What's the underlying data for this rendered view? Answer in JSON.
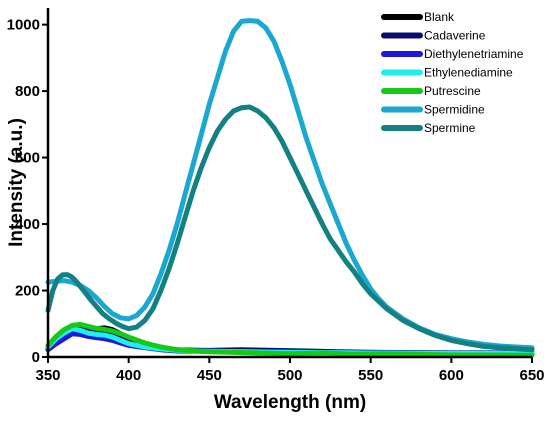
{
  "chart_data": {
    "type": "line",
    "title": "",
    "xlabel": "Wavelength (nm)",
    "ylabel": "Intensity (a.u.)",
    "xlim": [
      350,
      650
    ],
    "ylim": [
      0,
      1050
    ],
    "xticks": [
      350,
      400,
      450,
      500,
      550,
      600,
      650
    ],
    "yticks": [
      0,
      200,
      400,
      600,
      800,
      1000
    ],
    "legend_position": "top-right",
    "grid": false,
    "series": [
      {
        "name": "Blank",
        "color": "#000000",
        "points": [
          [
            350,
            28
          ],
          [
            355,
            50
          ],
          [
            360,
            70
          ],
          [
            365,
            85
          ],
          [
            370,
            92
          ],
          [
            375,
            90
          ],
          [
            380,
            85
          ],
          [
            385,
            88
          ],
          [
            390,
            82
          ],
          [
            395,
            70
          ],
          [
            400,
            52
          ],
          [
            410,
            35
          ],
          [
            420,
            28
          ],
          [
            430,
            22
          ],
          [
            450,
            18
          ],
          [
            500,
            15
          ],
          [
            550,
            13
          ],
          [
            600,
            12
          ],
          [
            650,
            12
          ]
        ]
      },
      {
        "name": "Cadaverine",
        "color": "#0b0b6e",
        "points": [
          [
            350,
            25
          ],
          [
            355,
            45
          ],
          [
            360,
            65
          ],
          [
            365,
            80
          ],
          [
            370,
            85
          ],
          [
            375,
            82
          ],
          [
            380,
            78
          ],
          [
            385,
            74
          ],
          [
            390,
            65
          ],
          [
            395,
            55
          ],
          [
            400,
            42
          ],
          [
            410,
            32
          ],
          [
            420,
            25
          ],
          [
            430,
            21
          ],
          [
            450,
            20
          ],
          [
            470,
            22
          ],
          [
            490,
            20
          ],
          [
            510,
            18
          ],
          [
            530,
            16
          ],
          [
            550,
            14
          ],
          [
            600,
            13
          ],
          [
            650,
            13
          ]
        ]
      },
      {
        "name": "Diethylenetriamine",
        "color": "#1a1ad8",
        "points": [
          [
            350,
            22
          ],
          [
            355,
            40
          ],
          [
            360,
            55
          ],
          [
            365,
            70
          ],
          [
            370,
            68
          ],
          [
            375,
            62
          ],
          [
            380,
            58
          ],
          [
            385,
            55
          ],
          [
            390,
            50
          ],
          [
            395,
            42
          ],
          [
            400,
            35
          ],
          [
            410,
            28
          ],
          [
            420,
            22
          ],
          [
            430,
            18
          ],
          [
            450,
            17
          ],
          [
            500,
            15
          ],
          [
            550,
            13
          ],
          [
            600,
            12
          ],
          [
            650,
            12
          ]
        ]
      },
      {
        "name": "Ethylenediamine",
        "color": "#22eef0",
        "points": [
          [
            350,
            30
          ],
          [
            355,
            55
          ],
          [
            360,
            72
          ],
          [
            365,
            85
          ],
          [
            370,
            80
          ],
          [
            375,
            72
          ],
          [
            380,
            68
          ],
          [
            385,
            66
          ],
          [
            390,
            60
          ],
          [
            395,
            50
          ],
          [
            400,
            40
          ],
          [
            410,
            30
          ],
          [
            420,
            24
          ],
          [
            430,
            20
          ],
          [
            450,
            17
          ],
          [
            500,
            14
          ],
          [
            550,
            12
          ],
          [
            600,
            11
          ],
          [
            650,
            11
          ]
        ]
      },
      {
        "name": "Putrescine",
        "color": "#16c916",
        "points": [
          [
            350,
            35
          ],
          [
            355,
            62
          ],
          [
            360,
            82
          ],
          [
            365,
            95
          ],
          [
            370,
            98
          ],
          [
            375,
            92
          ],
          [
            380,
            86
          ],
          [
            385,
            83
          ],
          [
            390,
            78
          ],
          [
            395,
            70
          ],
          [
            400,
            60
          ],
          [
            410,
            42
          ],
          [
            420,
            30
          ],
          [
            430,
            22
          ],
          [
            450,
            16
          ],
          [
            480,
            12
          ],
          [
            500,
            10
          ],
          [
            520,
            12
          ],
          [
            540,
            8
          ],
          [
            560,
            10
          ],
          [
            580,
            8
          ],
          [
            600,
            6
          ],
          [
            620,
            6
          ],
          [
            650,
            5
          ]
        ]
      },
      {
        "name": "Spermidine",
        "color": "#1aa7d2",
        "points": [
          [
            350,
            225
          ],
          [
            355,
            228
          ],
          [
            360,
            230
          ],
          [
            365,
            225
          ],
          [
            370,
            215
          ],
          [
            375,
            200
          ],
          [
            380,
            178
          ],
          [
            385,
            152
          ],
          [
            390,
            130
          ],
          [
            395,
            118
          ],
          [
            400,
            115
          ],
          [
            405,
            125
          ],
          [
            410,
            150
          ],
          [
            415,
            190
          ],
          [
            420,
            250
          ],
          [
            425,
            320
          ],
          [
            430,
            400
          ],
          [
            435,
            490
          ],
          [
            440,
            580
          ],
          [
            445,
            670
          ],
          [
            450,
            760
          ],
          [
            455,
            840
          ],
          [
            460,
            920
          ],
          [
            465,
            980
          ],
          [
            470,
            1010
          ],
          [
            475,
            1012
          ],
          [
            480,
            1010
          ],
          [
            485,
            990
          ],
          [
            490,
            950
          ],
          [
            495,
            890
          ],
          [
            500,
            820
          ],
          [
            505,
            740
          ],
          [
            510,
            660
          ],
          [
            515,
            590
          ],
          [
            520,
            520
          ],
          [
            525,
            460
          ],
          [
            530,
            400
          ],
          [
            535,
            340
          ],
          [
            540,
            290
          ],
          [
            545,
            245
          ],
          [
            550,
            205
          ],
          [
            555,
            175
          ],
          [
            560,
            150
          ],
          [
            570,
            115
          ],
          [
            580,
            88
          ],
          [
            590,
            68
          ],
          [
            600,
            55
          ],
          [
            610,
            45
          ],
          [
            620,
            38
          ],
          [
            630,
            33
          ],
          [
            640,
            30
          ],
          [
            650,
            28
          ]
        ]
      },
      {
        "name": "Spermine",
        "color": "#138181",
        "points": [
          [
            350,
            140
          ],
          [
            353,
            200
          ],
          [
            356,
            235
          ],
          [
            359,
            247
          ],
          [
            362,
            248
          ],
          [
            365,
            240
          ],
          [
            368,
            225
          ],
          [
            372,
            200
          ],
          [
            376,
            175
          ],
          [
            380,
            152
          ],
          [
            384,
            130
          ],
          [
            388,
            115
          ],
          [
            392,
            102
          ],
          [
            396,
            92
          ],
          [
            400,
            85
          ],
          [
            405,
            90
          ],
          [
            410,
            110
          ],
          [
            415,
            145
          ],
          [
            420,
            200
          ],
          [
            425,
            265
          ],
          [
            430,
            340
          ],
          [
            435,
            420
          ],
          [
            440,
            500
          ],
          [
            445,
            570
          ],
          [
            450,
            630
          ],
          [
            455,
            680
          ],
          [
            460,
            715
          ],
          [
            465,
            740
          ],
          [
            470,
            750
          ],
          [
            475,
            752
          ],
          [
            480,
            740
          ],
          [
            485,
            720
          ],
          [
            490,
            690
          ],
          [
            495,
            650
          ],
          [
            500,
            600
          ],
          [
            505,
            550
          ],
          [
            510,
            500
          ],
          [
            515,
            450
          ],
          [
            520,
            400
          ],
          [
            525,
            355
          ],
          [
            530,
            320
          ],
          [
            535,
            285
          ],
          [
            540,
            255
          ],
          [
            545,
            220
          ],
          [
            550,
            190
          ],
          [
            560,
            145
          ],
          [
            570,
            110
          ],
          [
            580,
            85
          ],
          [
            590,
            65
          ],
          [
            600,
            50
          ],
          [
            610,
            40
          ],
          [
            620,
            32
          ],
          [
            630,
            28
          ],
          [
            640,
            25
          ],
          [
            650,
            22
          ]
        ]
      }
    ]
  }
}
